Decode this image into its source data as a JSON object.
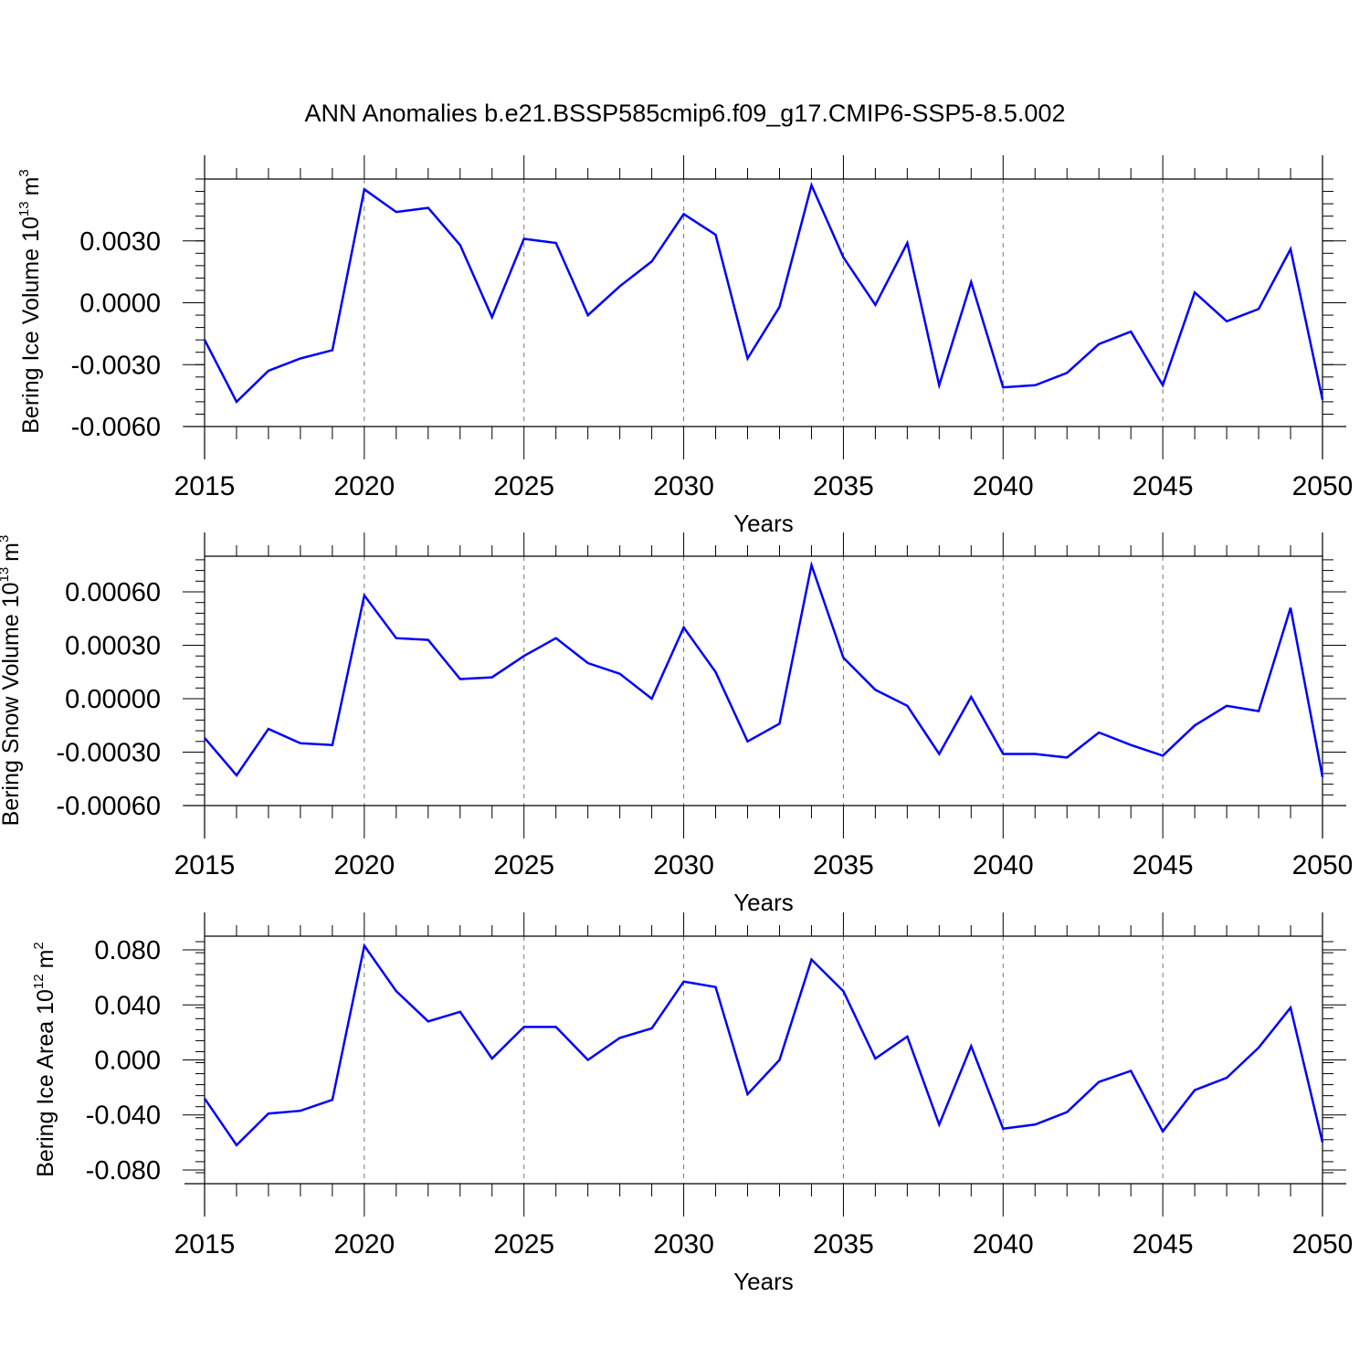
{
  "figure": {
    "title": "ANN Anomalies b.e21.BSSP585cmip6.f09_g17.CMIP6-SSP5-8.5.002"
  },
  "colors": {
    "series": "#0000ff",
    "axis": "#000000",
    "grid": "#777777"
  },
  "chart_data": [
    {
      "type": "line",
      "title": "ANN Anomalies b.e21.BSSP585cmip6.f09_g17.CMIP6-SSP5-8.5.002",
      "xlabel": "Years",
      "ylabel": "Bering Ice Volume 10",
      "ylabel_exponent": "13",
      "ylabel_unit": "m",
      "ylabel_unit_exponent": "3",
      "xlim": [
        2015,
        2050
      ],
      "ylim": [
        -0.006,
        0.006
      ],
      "x_ticks": [
        2015,
        2020,
        2025,
        2030,
        2035,
        2040,
        2045,
        2050
      ],
      "x_tick_labels": [
        "2015",
        "2020",
        "2025",
        "2030",
        "2035",
        "2040",
        "2045",
        "2050"
      ],
      "y_ticks": [
        -0.006,
        -0.003,
        0.0,
        0.003
      ],
      "y_tick_labels": [
        "-0.0060",
        "-0.0030",
        "0.0000",
        "0.0030"
      ],
      "y_minor_step": 0.0006,
      "grid": "vertical dashed at major x ticks",
      "x": [
        2015,
        2016,
        2017,
        2018,
        2019,
        2020,
        2021,
        2022,
        2023,
        2024,
        2025,
        2026,
        2027,
        2028,
        2029,
        2030,
        2031,
        2032,
        2033,
        2034,
        2035,
        2036,
        2037,
        2038,
        2039,
        2040,
        2041,
        2042,
        2043,
        2044,
        2045,
        2046,
        2047,
        2048,
        2049,
        2050
      ],
      "values": [
        -0.0018,
        -0.0048,
        -0.0033,
        -0.0027,
        -0.0023,
        0.0055,
        0.0044,
        0.0046,
        0.0028,
        -0.0007,
        0.0031,
        0.0029,
        -0.0006,
        0.0008,
        0.002,
        0.0043,
        0.0033,
        -0.0027,
        -0.0002,
        0.0057,
        0.0022,
        -0.0001,
        0.0029,
        -0.004,
        0.001,
        -0.0041,
        -0.004,
        -0.0034,
        -0.002,
        -0.0014,
        -0.004,
        0.0005,
        -0.0009,
        -0.0003,
        0.0026,
        -0.0047
      ]
    },
    {
      "type": "line",
      "xlabel": "Years",
      "ylabel": "Bering Snow Volume 10",
      "ylabel_exponent": "13",
      "ylabel_unit": "m",
      "ylabel_unit_exponent": "3",
      "xlim": [
        2015,
        2050
      ],
      "ylim": [
        -0.0006,
        0.0008
      ],
      "x_ticks": [
        2015,
        2020,
        2025,
        2030,
        2035,
        2040,
        2045,
        2050
      ],
      "x_tick_labels": [
        "2015",
        "2020",
        "2025",
        "2030",
        "2035",
        "2040",
        "2045",
        "2050"
      ],
      "y_ticks": [
        -0.0006,
        -0.0003,
        0.0,
        0.0003,
        0.0006
      ],
      "y_tick_labels": [
        "-0.00060",
        "-0.00030",
        "0.00000",
        "0.00030",
        "0.00060"
      ],
      "y_minor_step": 6e-05,
      "grid": "vertical dashed at major x ticks",
      "x": [
        2015,
        2016,
        2017,
        2018,
        2019,
        2020,
        2021,
        2022,
        2023,
        2024,
        2025,
        2026,
        2027,
        2028,
        2029,
        2030,
        2031,
        2032,
        2033,
        2034,
        2035,
        2036,
        2037,
        2038,
        2039,
        2040,
        2041,
        2042,
        2043,
        2044,
        2045,
        2046,
        2047,
        2048,
        2049,
        2050
      ],
      "values": [
        -0.00022,
        -0.00043,
        -0.00017,
        -0.00025,
        -0.00026,
        0.00058,
        0.00034,
        0.00033,
        0.00011,
        0.00012,
        0.00024,
        0.00034,
        0.0002,
        0.00014,
        0.0,
        0.0004,
        0.00015,
        -0.00024,
        -0.00014,
        0.00075,
        0.00023,
        5e-05,
        -4e-05,
        -0.00031,
        1e-05,
        -0.00031,
        -0.00031,
        -0.00033,
        -0.00019,
        -0.00026,
        -0.00032,
        -0.00015,
        -4e-05,
        -7e-05,
        0.00051,
        -0.00044
      ]
    },
    {
      "type": "line",
      "xlabel": "Years",
      "ylabel": "Bering Ice Area 10",
      "ylabel_exponent": "12",
      "ylabel_unit": "m",
      "ylabel_unit_exponent": "2",
      "xlim": [
        2015,
        2050
      ],
      "ylim": [
        -0.09,
        0.09
      ],
      "x_ticks": [
        2015,
        2020,
        2025,
        2030,
        2035,
        2040,
        2045,
        2050
      ],
      "x_tick_labels": [
        "2015",
        "2020",
        "2025",
        "2030",
        "2035",
        "2040",
        "2045",
        "2050"
      ],
      "y_ticks": [
        -0.08,
        -0.04,
        0.0,
        0.04,
        0.08
      ],
      "y_tick_labels": [
        "-0.080",
        "-0.040",
        "0.000",
        "0.040",
        "0.080"
      ],
      "y_minor_step": 0.008,
      "grid": "vertical dashed at major x ticks",
      "x": [
        2015,
        2016,
        2017,
        2018,
        2019,
        2020,
        2021,
        2022,
        2023,
        2024,
        2025,
        2026,
        2027,
        2028,
        2029,
        2030,
        2031,
        2032,
        2033,
        2034,
        2035,
        2036,
        2037,
        2038,
        2039,
        2040,
        2041,
        2042,
        2043,
        2044,
        2045,
        2046,
        2047,
        2048,
        2049,
        2050
      ],
      "values": [
        -0.028,
        -0.062,
        -0.039,
        -0.037,
        -0.029,
        0.083,
        0.05,
        0.028,
        0.035,
        0.001,
        0.024,
        0.024,
        0.0,
        0.016,
        0.023,
        0.057,
        0.053,
        -0.025,
        0.0,
        0.073,
        0.05,
        0.001,
        0.017,
        -0.047,
        0.01,
        -0.05,
        -0.047,
        -0.038,
        -0.016,
        -0.008,
        -0.052,
        -0.022,
        -0.013,
        0.009,
        0.038,
        -0.06
      ]
    }
  ]
}
